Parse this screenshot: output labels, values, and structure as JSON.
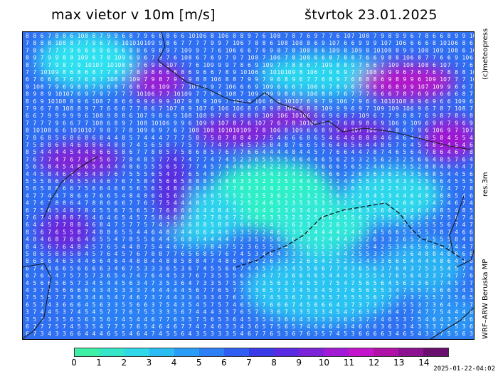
{
  "title": "max vietor v 10m [m/s]",
  "date": "štvrtok 23.01.2025",
  "credit": "(c)meteopress",
  "resolution": "res.3m",
  "model": "WRF–ARW Beruska MP",
  "timestamp": "2025-01-22-04:02",
  "legend": {
    "ticks": [
      "0",
      "1",
      "2",
      "3",
      "4",
      "5",
      "6",
      "7",
      "8",
      "9",
      "10",
      "11",
      "12",
      "13",
      "14"
    ],
    "colors": [
      "#3ef0a6",
      "#35e6c8",
      "#2fd8e8",
      "#2bbcf4",
      "#2a9ef6",
      "#2c7ff5",
      "#2f5ff2",
      "#3a3ae8",
      "#5a2be2",
      "#7d22d8",
      "#a21ad6",
      "#c414cc",
      "#b012a8",
      "#8c1290",
      "#6a0f6e"
    ]
  }
}
